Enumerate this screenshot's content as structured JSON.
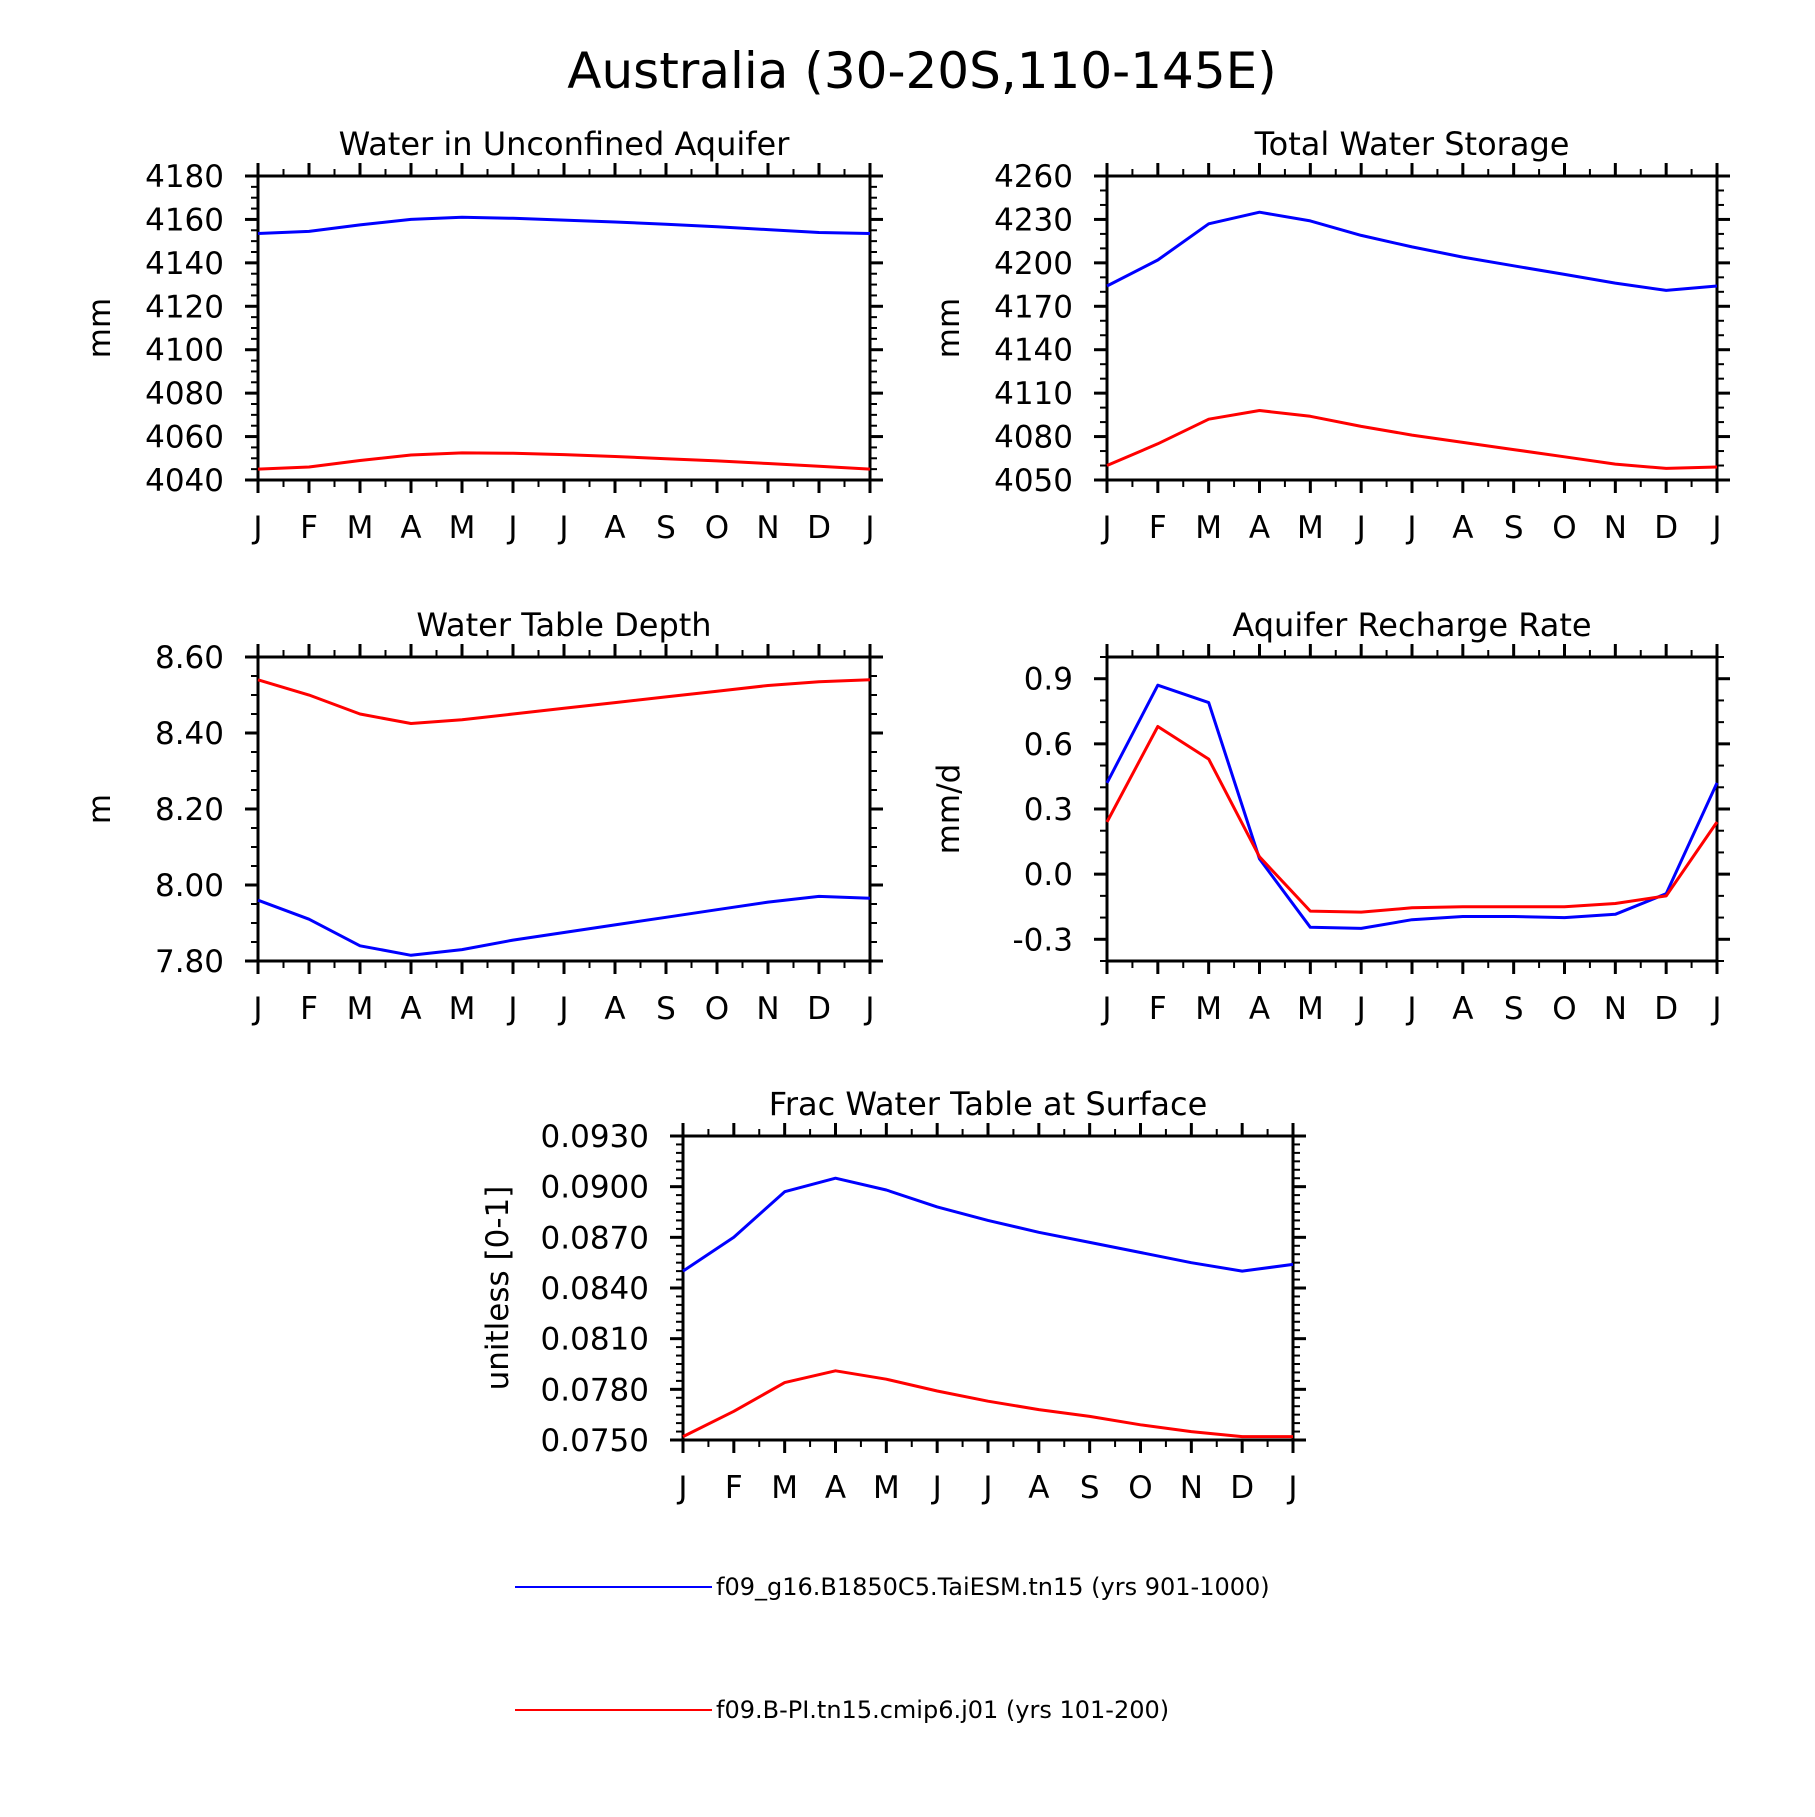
{
  "title": "Australia (30-20S,110-145E)",
  "months": [
    "J",
    "F",
    "M",
    "A",
    "M",
    "J",
    "J",
    "A",
    "S",
    "O",
    "N",
    "D",
    "J"
  ],
  "colors": {
    "series_a": "#0000ff",
    "series_b": "#ff0000"
  },
  "legend": {
    "entries": [
      {
        "label": "f09_g16.B1850C5.TaiESM.tn15 (yrs 901-1000)",
        "color": "#0000ff"
      },
      {
        "label": "f09.B-PI.tn15.cmip6.j01 (yrs 101-200)",
        "color": "#ff0000"
      }
    ]
  },
  "chart_data": [
    {
      "type": "line",
      "title": "Water in Unconfined Aquifer",
      "ylabel": "mm",
      "ylim": [
        4040,
        4180
      ],
      "yticks": [
        "4040",
        "4060",
        "4080",
        "4100",
        "4120",
        "4140",
        "4160",
        "4180"
      ],
      "ytick_values": [
        4040,
        4060,
        4080,
        4100,
        4120,
        4140,
        4160,
        4180
      ],
      "minor_step": 5,
      "categories": [
        "J",
        "F",
        "M",
        "A",
        "M",
        "J",
        "J",
        "A",
        "S",
        "O",
        "N",
        "D",
        "J"
      ],
      "series": [
        {
          "values": [
            4153.5,
            4154.5,
            4157.5,
            4160,
            4161,
            4160.5,
            4159.7,
            4158.8,
            4157.8,
            4156.6,
            4155.3,
            4154,
            4153.5
          ]
        },
        {
          "values": [
            4045,
            4046,
            4049,
            4051.5,
            4052.5,
            4052.3,
            4051.7,
            4050.8,
            4049.8,
            4048.8,
            4047.6,
            4046.3,
            4045
          ]
        }
      ]
    },
    {
      "type": "line",
      "title": "Total Water Storage",
      "ylabel": "mm",
      "ylim": [
        4050,
        4260
      ],
      "yticks": [
        "4050",
        "4080",
        "4110",
        "4140",
        "4170",
        "4200",
        "4230",
        "4260"
      ],
      "ytick_values": [
        4050,
        4080,
        4110,
        4140,
        4170,
        4200,
        4230,
        4260
      ],
      "minor_step": 10,
      "categories": [
        "J",
        "F",
        "M",
        "A",
        "M",
        "J",
        "J",
        "A",
        "S",
        "O",
        "N",
        "D",
        "J"
      ],
      "series": [
        {
          "values": [
            4184,
            4202,
            4227,
            4235,
            4229,
            4219,
            4211,
            4204,
            4198,
            4192,
            4186,
            4181,
            4184
          ]
        },
        {
          "values": [
            4060,
            4075,
            4092,
            4098,
            4094,
            4087,
            4081,
            4076,
            4071,
            4066,
            4061,
            4058,
            4059
          ]
        }
      ]
    },
    {
      "type": "line",
      "title": "Water Table Depth",
      "ylabel": "m",
      "ylim": [
        7.8,
        8.6
      ],
      "yticks": [
        "7.80",
        "8.00",
        "8.20",
        "8.40",
        "8.60"
      ],
      "ytick_values": [
        7.8,
        8.0,
        8.2,
        8.4,
        8.6
      ],
      "minor_step": 0.05,
      "categories": [
        "J",
        "F",
        "M",
        "A",
        "M",
        "J",
        "J",
        "A",
        "S",
        "O",
        "N",
        "D",
        "J"
      ],
      "series": [
        {
          "values": [
            7.96,
            7.91,
            7.84,
            7.815,
            7.83,
            7.855,
            7.875,
            7.895,
            7.915,
            7.935,
            7.955,
            7.97,
            7.965
          ]
        },
        {
          "values": [
            8.54,
            8.5,
            8.45,
            8.425,
            8.435,
            8.45,
            8.465,
            8.48,
            8.495,
            8.51,
            8.525,
            8.535,
            8.54
          ]
        }
      ]
    },
    {
      "type": "line",
      "title": "Aquifer Recharge Rate",
      "ylabel": "mm/d",
      "ylim": [
        -0.4,
        1.0
      ],
      "yticks": [
        "-0.3",
        "0.0",
        "0.3",
        "0.6",
        "0.9"
      ],
      "ytick_values": [
        -0.3,
        0.0,
        0.3,
        0.6,
        0.9
      ],
      "minor_step": 0.1,
      "categories": [
        "J",
        "F",
        "M",
        "A",
        "M",
        "J",
        "J",
        "A",
        "S",
        "O",
        "N",
        "D",
        "J"
      ],
      "series": [
        {
          "values": [
            0.42,
            0.87,
            0.79,
            0.07,
            -0.245,
            -0.25,
            -0.21,
            -0.195,
            -0.195,
            -0.2,
            -0.185,
            -0.09,
            0.42
          ]
        },
        {
          "values": [
            0.24,
            0.68,
            0.53,
            0.08,
            -0.17,
            -0.175,
            -0.155,
            -0.15,
            -0.15,
            -0.15,
            -0.135,
            -0.1,
            0.24
          ]
        }
      ]
    },
    {
      "type": "line",
      "title": "Frac Water Table at Surface",
      "ylabel": "unitless [0-1]",
      "ylim": [
        0.075,
        0.093
      ],
      "yticks": [
        "0.0750",
        "0.0780",
        "0.0810",
        "0.0840",
        "0.0870",
        "0.0900",
        "0.0930"
      ],
      "ytick_values": [
        0.075,
        0.078,
        0.081,
        0.084,
        0.087,
        0.09,
        0.093
      ],
      "minor_step": 0.0005,
      "categories": [
        "J",
        "F",
        "M",
        "A",
        "M",
        "J",
        "J",
        "A",
        "S",
        "O",
        "N",
        "D",
        "J"
      ],
      "series": [
        {
          "values": [
            0.085,
            0.087,
            0.0897,
            0.0905,
            0.0898,
            0.0888,
            0.088,
            0.0873,
            0.0867,
            0.0861,
            0.0855,
            0.085,
            0.0854
          ]
        },
        {
          "values": [
            0.0752,
            0.0767,
            0.0784,
            0.0791,
            0.0786,
            0.0779,
            0.0773,
            0.0768,
            0.0764,
            0.0759,
            0.0755,
            0.0752,
            0.0752
          ]
        }
      ]
    }
  ]
}
